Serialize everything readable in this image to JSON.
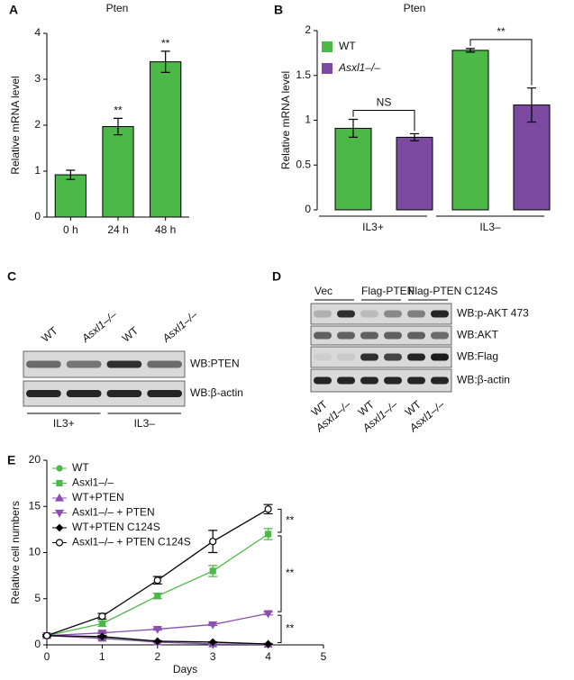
{
  "chart_data": [
    {
      "type": "bar",
      "panel": "A",
      "title": "Pten",
      "ylabel": "Relative mRNA level",
      "categories": [
        "0 h",
        "24 h",
        "48 h"
      ],
      "values": [
        0.92,
        1.97,
        3.38
      ],
      "errors": [
        0.1,
        0.18,
        0.23
      ],
      "significance": [
        null,
        "**",
        "**"
      ],
      "color": "#4cb848",
      "ylim": [
        0,
        4
      ],
      "yticks": [
        0,
        1,
        2,
        3,
        4
      ]
    },
    {
      "type": "bar",
      "panel": "B",
      "title": "Pten",
      "ylabel": "Relative mRNA level",
      "categories": [
        "IL3+",
        "IL3–"
      ],
      "series": [
        {
          "name": "WT",
          "color": "#4cb848",
          "values": [
            0.91,
            1.78
          ],
          "errors": [
            0.1,
            0.02
          ],
          "significance": [
            null,
            null
          ]
        },
        {
          "name": "Asxl1–/–",
          "color": "#7b4aa0",
          "values": [
            0.81,
            1.17
          ],
          "errors": [
            0.04,
            0.19
          ],
          "significance": [
            "NS",
            "**"
          ]
        }
      ],
      "ylim": [
        0,
        2
      ],
      "yticks": [
        0,
        0.5,
        1,
        1.5,
        2
      ],
      "legend": "upper-left"
    },
    {
      "type": "line",
      "panel": "E",
      "xlabel": "Days",
      "ylabel": "Relative cell numbers",
      "x": [
        0,
        1,
        2,
        3,
        4
      ],
      "series": [
        {
          "name": "WT",
          "color": "#4cb848",
          "marker": "circle",
          "values": [
            1,
            0.8,
            0.3,
            0.1,
            0.05
          ],
          "errors": [
            0.1,
            0.1,
            0.05,
            0.05,
            0.05
          ]
        },
        {
          "name": "Asxl1–/–",
          "color": "#4cb848",
          "marker": "square",
          "values": [
            1,
            2.3,
            5.3,
            8.0,
            12.0
          ],
          "errors": [
            0.1,
            0.3,
            0.3,
            0.6,
            0.6
          ]
        },
        {
          "name": "WT+PTEN",
          "color": "#8a4fb0",
          "marker": "triangle-up",
          "values": [
            1,
            0.7,
            0.3,
            0.1,
            0.05
          ],
          "errors": [
            0.1,
            0.1,
            0.05,
            0.05,
            0.05
          ]
        },
        {
          "name": "Asxl1–/– + PTEN",
          "color": "#8a4fb0",
          "marker": "triangle-down",
          "values": [
            1,
            1.3,
            1.7,
            2.2,
            3.4
          ],
          "errors": [
            0.1,
            0.1,
            0.1,
            0.1,
            0.15
          ]
        },
        {
          "name": "WT+PTEN C124S",
          "color": "#000000",
          "marker": "diamond",
          "values": [
            1,
            0.9,
            0.4,
            0.3,
            0.1
          ],
          "errors": [
            0.1,
            0.1,
            0.05,
            0.05,
            0.05
          ]
        },
        {
          "name": "Asxl1–/– + PTEN C124S",
          "color": "#000000",
          "marker": "circle-open",
          "values": [
            1,
            3.1,
            7.0,
            11.2,
            14.7
          ],
          "errors": [
            0.1,
            0.3,
            0.4,
            1.2,
            0.5
          ]
        }
      ],
      "brackets": [
        {
          "text": "**",
          "from": 14.7,
          "to": 12.0
        },
        {
          "text": "**",
          "from": 12.0,
          "to": 3.4
        },
        {
          "text": "**",
          "from": 3.4,
          "to": 0.05
        }
      ],
      "xlim": [
        0,
        5
      ],
      "xticks": [
        0,
        1,
        2,
        3,
        4,
        5
      ],
      "ylim": [
        0,
        20
      ],
      "yticks": [
        0,
        5,
        10,
        15,
        20
      ],
      "legend": "upper-left"
    }
  ],
  "blots": [
    {
      "panel": "C",
      "lanes": [
        "WT",
        "Asxl1–/–",
        "WT",
        "Asxl1–/–"
      ],
      "rows": [
        "WB:PTEN",
        "WB:β-actin"
      ],
      "groups": [
        "IL3+",
        "IL3–"
      ]
    },
    {
      "panel": "D",
      "groups": [
        "Vec",
        "Flag-PTEN",
        "Flag-PTEN C124S"
      ],
      "rows": [
        "WB:p-AKT 473",
        "WB:AKT",
        "WB:Flag",
        "WB:β-actin"
      ],
      "lanes": [
        "WT",
        "Asxl1–/–",
        "WT",
        "Asxl1–/–",
        "WT",
        "Asxl1–/–"
      ]
    }
  ]
}
